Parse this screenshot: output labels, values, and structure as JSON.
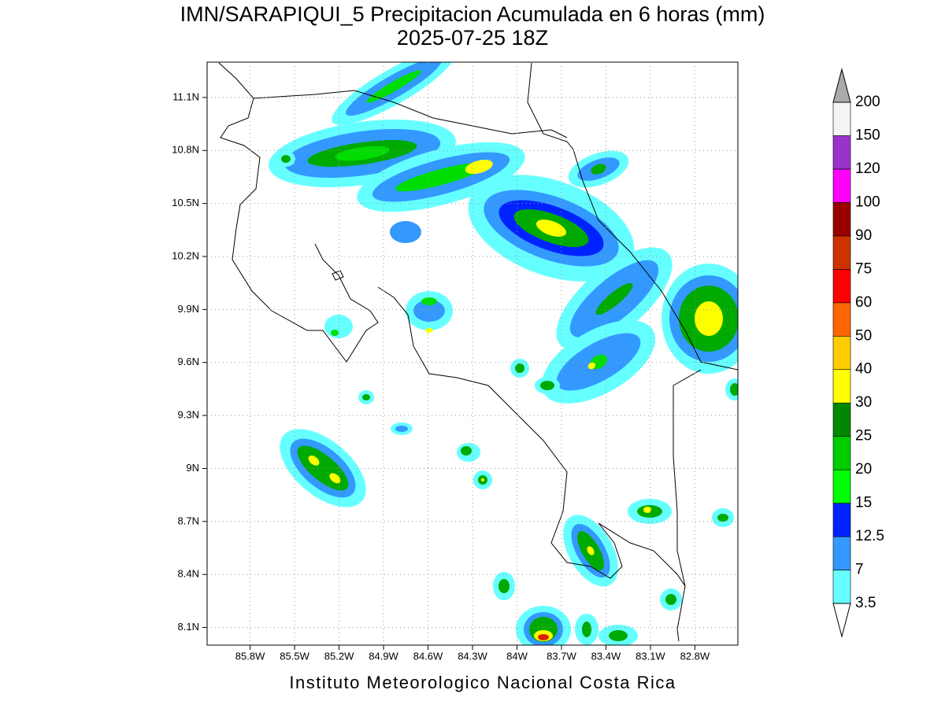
{
  "title": "IMN/SARAPIQUI_5 Precipitacion Acumulada en 6 horas (mm)",
  "subtitle": "2025-07-25 18Z",
  "footer": "Instituto Meteorologico Nacional Costa Rica",
  "map": {
    "xlim": [
      -86.09,
      -82.51
    ],
    "ylim": [
      8.0,
      11.3
    ],
    "grid": true,
    "xticks": [
      {
        "value": -85.8,
        "label": "85.8W"
      },
      {
        "value": -85.5,
        "label": "85.5W"
      },
      {
        "value": -85.2,
        "label": "85.2W"
      },
      {
        "value": -84.9,
        "label": "84.9W"
      },
      {
        "value": -84.6,
        "label": "84.6W"
      },
      {
        "value": -84.3,
        "label": "84.3W"
      },
      {
        "value": -84.0,
        "label": "84W"
      },
      {
        "value": -83.7,
        "label": "83.7W"
      },
      {
        "value": -83.4,
        "label": "83.4W"
      },
      {
        "value": -83.1,
        "label": "83.1W"
      },
      {
        "value": -82.8,
        "label": "82.8W"
      }
    ],
    "yticks": [
      {
        "value": 8.1,
        "label": "8.1N"
      },
      {
        "value": 8.4,
        "label": "8.4N"
      },
      {
        "value": 8.7,
        "label": "8.7N"
      },
      {
        "value": 9.0,
        "label": "9N"
      },
      {
        "value": 9.3,
        "label": "9.3N"
      },
      {
        "value": 9.6,
        "label": "9.6N"
      },
      {
        "value": 9.9,
        "label": "9.9N"
      },
      {
        "value": 10.2,
        "label": "10.2N"
      },
      {
        "value": 10.5,
        "label": "10.5N"
      },
      {
        "value": 10.8,
        "label": "10.8N"
      },
      {
        "value": 11.1,
        "label": "11.1N"
      }
    ]
  },
  "colorbar": {
    "levels": [
      3.5,
      7,
      12.5,
      15,
      20,
      25,
      30,
      40,
      50,
      60,
      75,
      90,
      100,
      120,
      150,
      200
    ],
    "colors": [
      "#66ffff",
      "#3399ff",
      "#0022ff",
      "#00ff00",
      "#00cc00",
      "#008800",
      "#ffff00",
      "#ffcc00",
      "#ff6600",
      "#ff0000",
      "#cc3300",
      "#990000",
      "#ff00ff",
      "#9933cc",
      "#f4f4f4"
    ],
    "under_color": "#ffffff",
    "over_color": "#aaaaaa"
  }
}
